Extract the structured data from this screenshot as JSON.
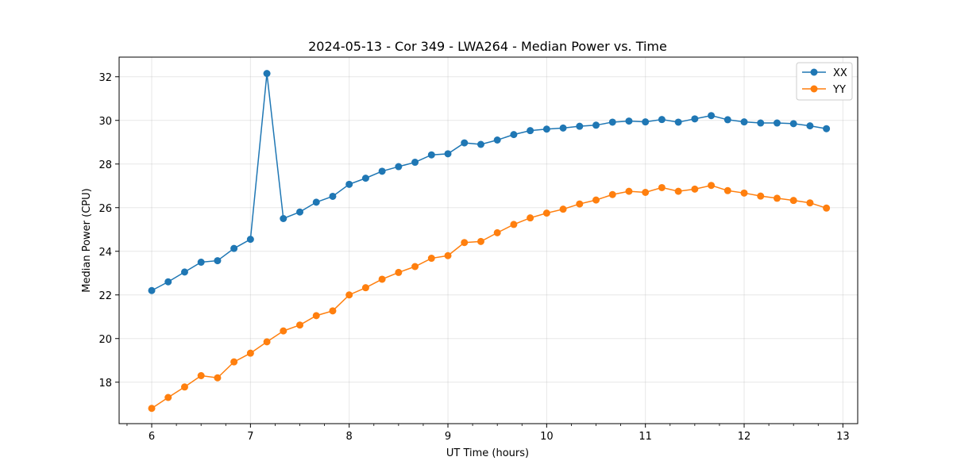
{
  "chart_data": {
    "type": "line",
    "title": "2024-05-13 - Cor 349 - LWA264 - Median Power vs. Time",
    "xlabel": "UT Time (hours)",
    "ylabel": "Median Power (CPU)",
    "xlim": [
      5.67,
      13.15
    ],
    "ylim": [
      16.1,
      32.9
    ],
    "x_ticks": [
      6,
      7,
      8,
      9,
      10,
      11,
      12,
      13
    ],
    "x_minor_step": 0.25,
    "y_ticks": [
      18,
      20,
      22,
      24,
      26,
      28,
      30,
      32
    ],
    "grid": true,
    "legend_position": "top-right",
    "x": [
      6.0,
      6.1667,
      6.3333,
      6.5,
      6.6667,
      6.8333,
      7.0,
      7.1667,
      7.3333,
      7.5,
      7.6667,
      7.8333,
      8.0,
      8.1667,
      8.3333,
      8.5,
      8.6667,
      8.8333,
      9.0,
      9.1667,
      9.3333,
      9.5,
      9.6667,
      9.8333,
      10.0,
      10.1667,
      10.3333,
      10.5,
      10.6667,
      10.8333,
      11.0,
      11.1667,
      11.3333,
      11.5,
      11.6667,
      11.8333,
      12.0,
      12.1667,
      12.3333,
      12.5,
      12.6667,
      12.8333
    ],
    "series": [
      {
        "name": "XX",
        "color": "#1f77b4",
        "values": [
          22.2,
          22.6,
          23.05,
          23.5,
          23.57,
          24.13,
          24.55,
          32.15,
          25.5,
          25.8,
          26.25,
          26.52,
          27.07,
          27.35,
          27.67,
          27.88,
          28.08,
          28.42,
          28.47,
          28.97,
          28.9,
          29.1,
          29.35,
          29.53,
          29.6,
          29.65,
          29.73,
          29.78,
          29.92,
          29.97,
          29.93,
          30.04,
          29.92,
          30.07,
          30.22,
          30.03,
          29.93,
          29.88,
          29.88,
          29.85,
          29.75,
          29.62
        ]
      },
      {
        "name": "YY",
        "color": "#ff7f0e",
        "values": [
          16.8,
          17.3,
          17.78,
          18.3,
          18.2,
          18.93,
          19.33,
          19.85,
          20.35,
          20.62,
          21.05,
          21.27,
          22.0,
          22.33,
          22.72,
          23.03,
          23.3,
          23.68,
          23.8,
          24.4,
          24.45,
          24.85,
          25.23,
          25.53,
          25.75,
          25.93,
          26.17,
          26.35,
          26.6,
          26.75,
          26.7,
          26.92,
          26.75,
          26.85,
          27.02,
          26.78,
          26.67,
          26.53,
          26.43,
          26.33,
          26.22,
          25.98
        ]
      }
    ]
  }
}
